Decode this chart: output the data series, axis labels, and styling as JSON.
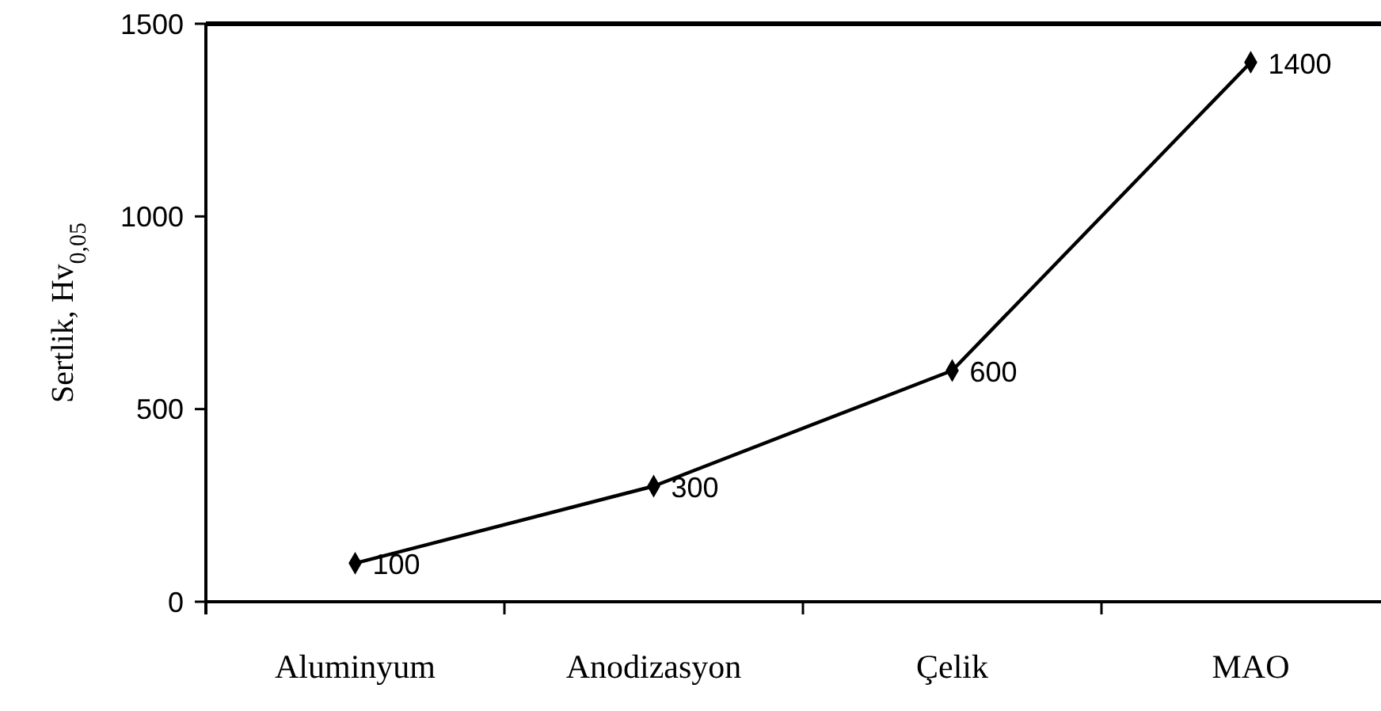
{
  "chart_data": {
    "type": "line",
    "ylabel": "Sertlik, Hv$_{0,05}$",
    "categories": [
      "Aluminyum",
      "Anodizasyon",
      "Çelik",
      "MAO"
    ],
    "series": [
      {
        "color": "#000000",
        "values": [
          100,
          300,
          600,
          1400
        ]
      }
    ],
    "ylim": [
      0,
      1500
    ],
    "yticks": [
      0,
      500,
      1000,
      1500
    ],
    "marker": "diamond",
    "line_style": "solid",
    "data_labels": true
  }
}
